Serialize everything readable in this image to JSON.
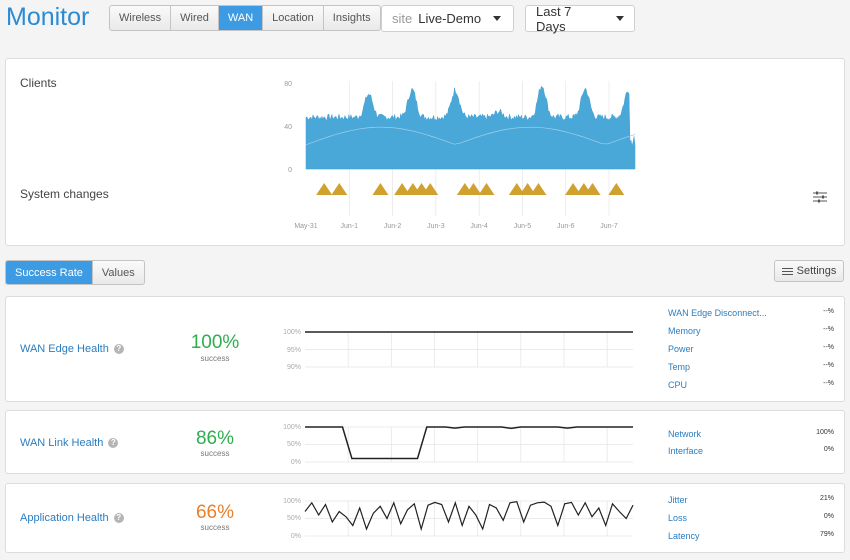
{
  "header": {
    "title": "Monitor",
    "tabs": [
      "Wireless",
      "Wired",
      "WAN",
      "Location",
      "Insights"
    ],
    "active_tab": "WAN",
    "site_prefix": "site",
    "site_value": "Live-Demo",
    "range_value": "Last 7 Days"
  },
  "clients_panel": {
    "clients_label": "Clients",
    "system_changes_label": "System changes",
    "y_ticks": [
      "80",
      "40",
      "0"
    ],
    "x_ticks": [
      "May-31",
      "Jun-1",
      "Jun-2",
      "Jun-3",
      "Jun-4",
      "Jun-5",
      "Jun-6",
      "Jun-7"
    ]
  },
  "toggle": {
    "success_rate": "Success Rate",
    "values": "Values"
  },
  "settings_label": "Settings",
  "wan_edge": {
    "title": "WAN Edge Health",
    "percent": "100%",
    "sub": "success",
    "y_ticks": [
      "100%",
      "95%",
      "90%"
    ],
    "metrics": [
      {
        "name": "WAN Edge Disconnect...",
        "value": "--%"
      },
      {
        "name": "Memory",
        "value": "--%"
      },
      {
        "name": "Power",
        "value": "--%"
      },
      {
        "name": "Temp",
        "value": "--%"
      },
      {
        "name": "CPU",
        "value": "--%"
      }
    ]
  },
  "wan_link": {
    "title": "WAN Link Health",
    "percent": "86%",
    "sub": "success",
    "y_ticks": [
      "100%",
      "50%",
      "0%"
    ],
    "metrics": [
      {
        "name": "Network",
        "value": "100%"
      },
      {
        "name": "Interface",
        "value": "0%"
      }
    ]
  },
  "app_health": {
    "title": "Application Health",
    "percent": "66%",
    "sub": "success",
    "y_ticks": [
      "100%",
      "50%",
      "0%"
    ],
    "metrics": [
      {
        "name": "Jitter",
        "value": "21%"
      },
      {
        "name": "Loss",
        "value": "0%"
      },
      {
        "name": "Latency",
        "value": "79%"
      }
    ]
  },
  "colors": {
    "accent": "#2a8ad4",
    "chart_fill": "#4aa8d8",
    "change_marker": "#d1a12f",
    "green": "#2eae4f",
    "orange": "#e8802c"
  },
  "chart_data": [
    {
      "type": "area",
      "title": "Clients",
      "x": [
        "May-31",
        "Jun-1",
        "Jun-2",
        "Jun-3",
        "Jun-4",
        "Jun-5",
        "Jun-6",
        "Jun-7"
      ],
      "ylim": [
        0,
        80
      ],
      "y_ticks": [
        0,
        40,
        80
      ],
      "series": [
        {
          "values": [
            47,
            68,
            72,
            72,
            52,
            76,
            73,
            72
          ]
        }
      ]
    },
    {
      "type": "scatter",
      "title": "System changes",
      "x_positions_days": [
        0.35,
        0.7,
        1.65,
        2.15,
        2.4,
        2.6,
        2.8,
        3.6,
        3.8,
        4.1,
        4.8,
        5.05,
        5.3,
        6.1,
        6.35,
        6.55,
        7.1
      ]
    },
    {
      "type": "line",
      "title": "WAN Edge Health",
      "ylim": [
        90,
        100
      ],
      "series": [
        {
          "values": [
            100,
            100,
            100,
            100,
            100,
            100,
            100,
            100
          ]
        }
      ]
    },
    {
      "type": "line",
      "title": "WAN Link Health",
      "ylim": [
        0,
        100
      ],
      "series": [
        {
          "values": [
            100,
            100,
            100,
            100,
            100,
            10,
            10,
            10,
            10,
            10,
            10,
            10,
            10,
            100,
            100,
            100,
            97,
            100,
            100,
            100,
            100,
            100,
            96,
            100,
            100,
            100,
            100,
            100,
            97,
            100,
            100,
            100,
            100,
            100,
            100,
            100
          ]
        }
      ]
    },
    {
      "type": "line",
      "title": "Application Health",
      "ylim": [
        0,
        100
      ],
      "series": [
        {
          "values": [
            70,
            95,
            60,
            90,
            40,
            70,
            55,
            30,
            80,
            20,
            65,
            85,
            50,
            95,
            35,
            75,
            92,
            20,
            88,
            96,
            90,
            40,
            95,
            30,
            85,
            60,
            20,
            90,
            80,
            45,
            95,
            98,
            40,
            88,
            95,
            97,
            85,
            30,
            92,
            96,
            60,
            95,
            55,
            80,
            30,
            92,
            70,
            50,
            88
          ]
        }
      ]
    }
  ]
}
